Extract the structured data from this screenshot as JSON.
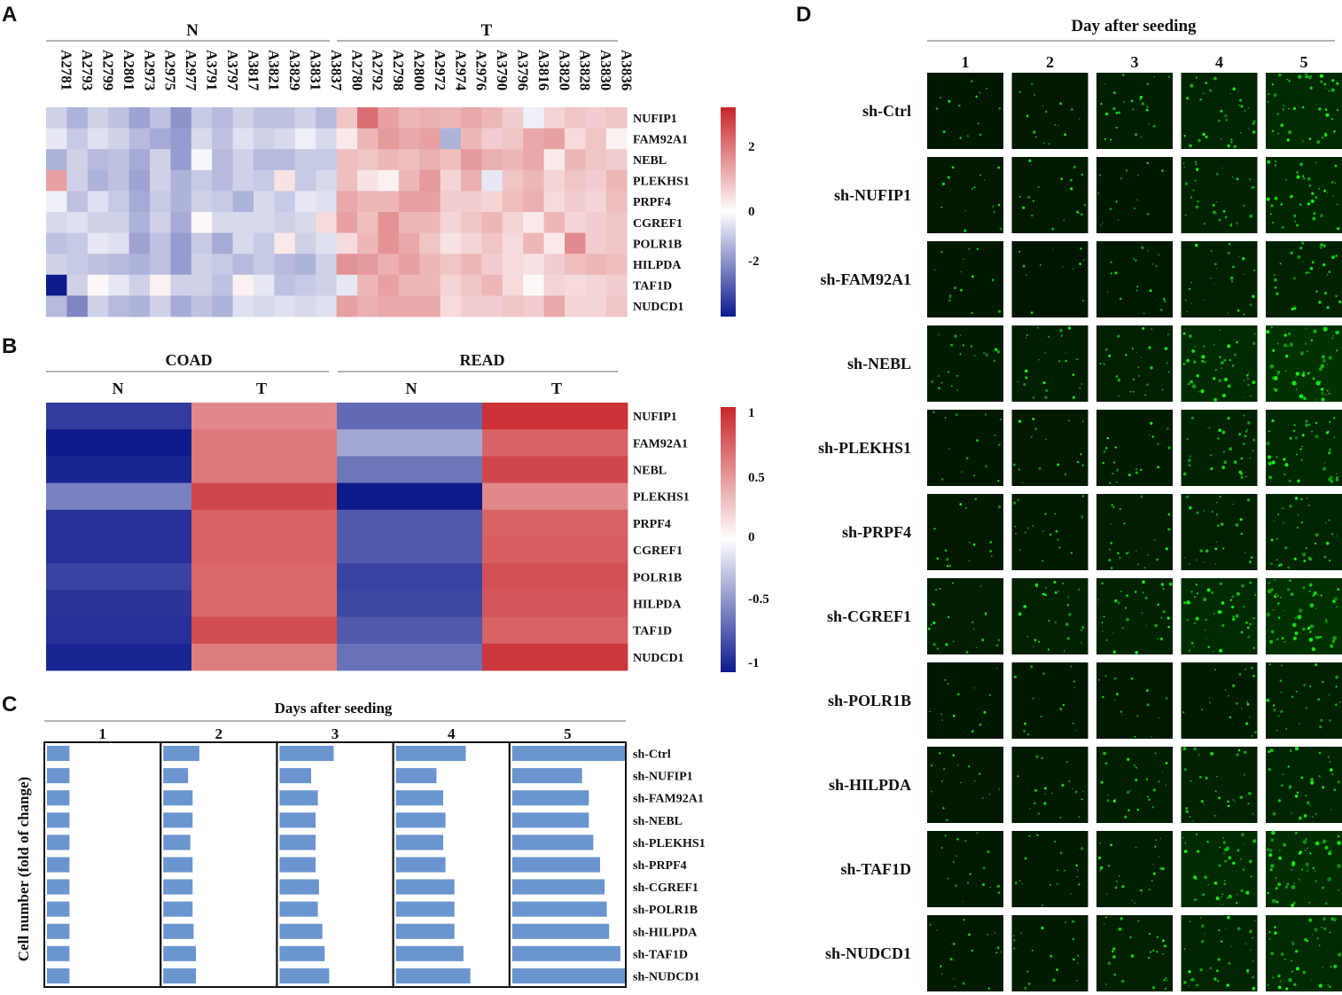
{
  "panels": {
    "a": "A",
    "b": "B",
    "c": "C",
    "d": "D"
  },
  "panelA": {
    "group_labels": [
      "N",
      "T"
    ],
    "samples_n": [
      "A2781",
      "A2793",
      "A2799",
      "A2801",
      "A2973",
      "A2975",
      "A2977",
      "A3791",
      "A3797",
      "A3817",
      "A3821",
      "A3829",
      "A3831",
      "A3837"
    ],
    "samples_t": [
      "A2780",
      "A2792",
      "A2798",
      "A2800",
      "A2972",
      "A2974",
      "A2976",
      "A3790",
      "A3796",
      "A3816",
      "A3820",
      "A3828",
      "A3830",
      "A3836"
    ],
    "genes": [
      "NUFIP1",
      "FAM92A1",
      "NEBL",
      "PLEKHS1",
      "PRPF4",
      "CGREF1",
      "POLR1B",
      "HILPDA",
      "TAF1D",
      "NUDCD1"
    ],
    "colorbar_ticks": [
      "2",
      "0",
      "-2"
    ]
  },
  "panelB": {
    "groups": [
      "COAD",
      "READ"
    ],
    "sub_labels": [
      "N",
      "T",
      "N",
      "T"
    ],
    "genes": [
      "NUFIP1",
      "FAM92A1",
      "NEBL",
      "PLEKHS1",
      "PRPF4",
      "CGREF1",
      "POLR1B",
      "HILPDA",
      "TAF1D",
      "NUDCD1"
    ],
    "colorbar_ticks": [
      "1",
      "0.5",
      "0",
      "-0.5",
      "-1"
    ]
  },
  "panelC": {
    "title": "Days after seeding",
    "ylabel": "Cell number (fold of change)",
    "days": [
      "1",
      "2",
      "3",
      "4",
      "5"
    ],
    "conditions": [
      "sh-Ctrl",
      "sh-NUFIP1",
      "sh-FAM92A1",
      "sh-NEBL",
      "sh-PLEKHS1",
      "sh-PRPF4",
      "sh-CGREF1",
      "sh-POLR1B",
      "sh-HILPDA",
      "sh-TAF1D",
      "sh-NUDCD1"
    ]
  },
  "panelD": {
    "title": "Day after seeding",
    "days": [
      "1",
      "2",
      "3",
      "4",
      "5"
    ],
    "conditions": [
      "sh-Ctrl",
      "sh-NUFIP1",
      "sh-FAM92A1",
      "sh-NEBL",
      "sh-PLEKHS1",
      "sh-PRPF4",
      "sh-CGREF1",
      "sh-POLR1B",
      "sh-HILPDA",
      "sh-TAF1D",
      "sh-NUDCD1"
    ],
    "intensity": [
      [
        0.08,
        0.12,
        0.25,
        0.4,
        0.55
      ],
      [
        0.12,
        0.15,
        0.1,
        0.35,
        0.45
      ],
      [
        0.1,
        0.05,
        0.15,
        0.3,
        0.35
      ],
      [
        0.2,
        0.25,
        0.3,
        0.55,
        0.75
      ],
      [
        0.1,
        0.12,
        0.2,
        0.35,
        0.5
      ],
      [
        0.12,
        0.15,
        0.22,
        0.3,
        0.4
      ],
      [
        0.22,
        0.3,
        0.35,
        0.55,
        0.7
      ],
      [
        0.08,
        0.1,
        0.12,
        0.2,
        0.3
      ],
      [
        0.12,
        0.18,
        0.25,
        0.35,
        0.4
      ],
      [
        0.15,
        0.15,
        0.25,
        0.55,
        0.65
      ],
      [
        0.15,
        0.2,
        0.3,
        0.4,
        0.55
      ]
    ]
  },
  "chart_data": [
    {
      "type": "heatmap",
      "title": "A",
      "row_labels": [
        "NUFIP1",
        "FAM92A1",
        "NEBL",
        "PLEKHS1",
        "PRPF4",
        "CGREF1",
        "POLR1B",
        "HILPDA",
        "TAF1D",
        "NUDCD1"
      ],
      "col_labels": [
        "A2781",
        "A2793",
        "A2799",
        "A2801",
        "A2973",
        "A2975",
        "A2977",
        "A3791",
        "A3797",
        "A3817",
        "A3821",
        "A3829",
        "A3831",
        "A3837",
        "A2780",
        "A2792",
        "A2798",
        "A2800",
        "A2972",
        "A2974",
        "A2976",
        "A3790",
        "A3796",
        "A3816",
        "A3820",
        "A3828",
        "A3830",
        "A3836"
      ],
      "col_groups": [
        {
          "name": "N",
          "count": 14
        },
        {
          "name": "T",
          "count": 14
        }
      ],
      "color_range": [
        -3,
        3
      ],
      "colors": {
        "low": "#0d1a8c",
        "mid": "#ffffff",
        "high": "#c8262b"
      },
      "values": [
        [
          -0.6,
          -1.0,
          -0.6,
          -0.8,
          -1.2,
          -0.8,
          -1.4,
          -0.7,
          -0.9,
          -0.6,
          -0.8,
          -0.8,
          -0.6,
          -0.9,
          0.8,
          2.0,
          1.3,
          1.0,
          1.1,
          1.0,
          1.2,
          1.0,
          0.7,
          -0.2,
          0.6,
          0.8,
          0.7,
          0.8
        ],
        [
          -0.3,
          -0.7,
          -0.4,
          -0.6,
          -0.9,
          -1.1,
          -1.3,
          -0.5,
          -0.8,
          -0.4,
          -0.6,
          -0.5,
          -0.2,
          -0.5,
          0.3,
          1.0,
          1.4,
          1.2,
          1.3,
          -1.0,
          1.0,
          0.7,
          0.8,
          1.2,
          1.3,
          0.5,
          0.8,
          0.2
        ],
        [
          -1.0,
          -0.6,
          -0.9,
          -0.8,
          -1.1,
          -0.6,
          -1.3,
          -0.1,
          -0.9,
          -0.6,
          -0.9,
          -0.9,
          -0.7,
          -0.7,
          0.9,
          0.8,
          1.0,
          0.9,
          1.1,
          0.9,
          1.4,
          1.1,
          1.0,
          1.2,
          0.3,
          1.0,
          0.8,
          0.7
        ],
        [
          1.3,
          -0.6,
          -1.0,
          -0.8,
          -1.2,
          -0.6,
          -1.0,
          -0.7,
          -0.9,
          -0.6,
          -0.7,
          0.4,
          -0.7,
          -0.5,
          0.9,
          0.4,
          0.2,
          1.0,
          1.4,
          0.6,
          1.1,
          -0.3,
          0.8,
          1.0,
          0.6,
          0.8,
          0.7,
          1.0
        ],
        [
          -0.2,
          -0.8,
          -0.4,
          -0.7,
          -1.1,
          -0.7,
          -1.0,
          -0.6,
          -0.7,
          -1.0,
          -0.5,
          -0.7,
          -0.3,
          -0.4,
          1.2,
          1.0,
          1.0,
          1.3,
          1.3,
          0.7,
          0.7,
          0.6,
          0.9,
          1.1,
          0.5,
          0.7,
          0.6,
          0.9
        ],
        [
          -0.5,
          -0.4,
          -0.6,
          -0.6,
          -1.0,
          -0.6,
          -1.1,
          0.1,
          -0.5,
          -0.5,
          -0.5,
          -0.6,
          -0.5,
          0.5,
          1.3,
          0.9,
          1.5,
          1.0,
          1.0,
          0.6,
          0.8,
          1.0,
          0.6,
          0.3,
          1.0,
          0.6,
          0.7,
          0.8
        ],
        [
          -0.8,
          -0.7,
          -0.3,
          -0.4,
          -1.2,
          -0.8,
          -1.3,
          -0.7,
          -1.1,
          -0.5,
          -0.7,
          0.3,
          -0.6,
          -0.4,
          0.5,
          1.0,
          1.5,
          1.2,
          0.8,
          0.4,
          0.6,
          0.8,
          0.5,
          1.0,
          0.3,
          1.6,
          0.7,
          0.8
        ],
        [
          -0.6,
          -0.7,
          -0.8,
          -0.9,
          -1.0,
          -0.8,
          -1.3,
          -0.6,
          -0.7,
          -0.9,
          -0.7,
          -0.9,
          -1.0,
          -0.6,
          1.5,
          1.4,
          1.1,
          1.3,
          1.0,
          0.8,
          1.0,
          0.7,
          0.5,
          0.4,
          0.7,
          0.9,
          1.0,
          0.9
        ],
        [
          -3.0,
          -0.6,
          0.1,
          -0.3,
          -0.6,
          0.2,
          -0.6,
          -0.6,
          -0.8,
          0.2,
          -0.3,
          -0.8,
          -0.7,
          -0.6,
          -0.3,
          1.0,
          1.3,
          1.0,
          1.0,
          0.6,
          0.8,
          1.0,
          0.5,
          0.1,
          0.6,
          0.5,
          0.6,
          0.7
        ],
        [
          -0.9,
          -1.6,
          -0.6,
          -0.9,
          -1.0,
          -0.6,
          -1.1,
          -0.8,
          -1.0,
          -0.4,
          -0.5,
          -0.4,
          -0.5,
          -0.4,
          1.3,
          1.1,
          1.2,
          1.2,
          1.2,
          0.5,
          0.7,
          0.7,
          0.8,
          0.7,
          1.2,
          0.6,
          0.6,
          0.8
        ]
      ]
    },
    {
      "type": "heatmap",
      "title": "B",
      "row_labels": [
        "NUFIP1",
        "FAM92A1",
        "NEBL",
        "PLEKHS1",
        "PRPF4",
        "CGREF1",
        "POLR1B",
        "HILPDA",
        "TAF1D",
        "NUDCD1"
      ],
      "col_labels": [
        "COAD N",
        "COAD T",
        "READ N",
        "READ T"
      ],
      "color_range": [
        -1,
        1
      ],
      "colors": {
        "low": "#0d1a8c",
        "mid": "#ffffff",
        "high": "#c8262b"
      },
      "values": [
        [
          -0.85,
          0.55,
          -0.65,
          0.95
        ],
        [
          -1.0,
          0.62,
          -0.38,
          0.72
        ],
        [
          -0.95,
          0.62,
          -0.6,
          0.85
        ],
        [
          -0.55,
          0.85,
          -1.0,
          0.55
        ],
        [
          -0.9,
          0.72,
          -0.72,
          0.72
        ],
        [
          -0.9,
          0.72,
          -0.72,
          0.74
        ],
        [
          -0.82,
          0.7,
          -0.82,
          0.8
        ],
        [
          -0.88,
          0.7,
          -0.8,
          0.78
        ],
        [
          -0.9,
          0.82,
          -0.72,
          0.72
        ],
        [
          -0.95,
          0.6,
          -0.62,
          0.92
        ]
      ]
    },
    {
      "type": "bar",
      "orientation": "horizontal",
      "title": "Days after seeding",
      "ylabel": "Cell number (fold of change)",
      "categories": [
        "sh-Ctrl",
        "sh-NUFIP1",
        "sh-FAM92A1",
        "sh-NEBL",
        "sh-PLEKHS1",
        "sh-PRPF4",
        "sh-CGREF1",
        "sh-POLR1B",
        "sh-HILPDA",
        "sh-TAF1D",
        "sh-NUDCD1"
      ],
      "xlim": [
        0,
        5
      ],
      "series": [
        {
          "name": "1",
          "values": [
            1,
            1,
            1,
            1,
            1,
            1,
            1,
            1,
            1,
            1,
            1
          ]
        },
        {
          "name": "2",
          "values": [
            1.6,
            1.1,
            1.3,
            1.3,
            1.2,
            1.3,
            1.3,
            1.3,
            1.35,
            1.45,
            1.45
          ]
        },
        {
          "name": "3",
          "values": [
            2.4,
            1.4,
            1.7,
            1.6,
            1.6,
            1.6,
            1.75,
            1.7,
            1.9,
            2.0,
            2.2
          ]
        },
        {
          "name": "4",
          "values": [
            3.1,
            1.8,
            2.1,
            2.2,
            2.1,
            2.2,
            2.6,
            2.6,
            2.6,
            3.0,
            3.3
          ]
        },
        {
          "name": "5",
          "values": [
            5.0,
            3.1,
            3.4,
            3.4,
            3.6,
            3.9,
            4.1,
            4.2,
            4.3,
            4.8,
            5.0
          ]
        }
      ]
    }
  ]
}
